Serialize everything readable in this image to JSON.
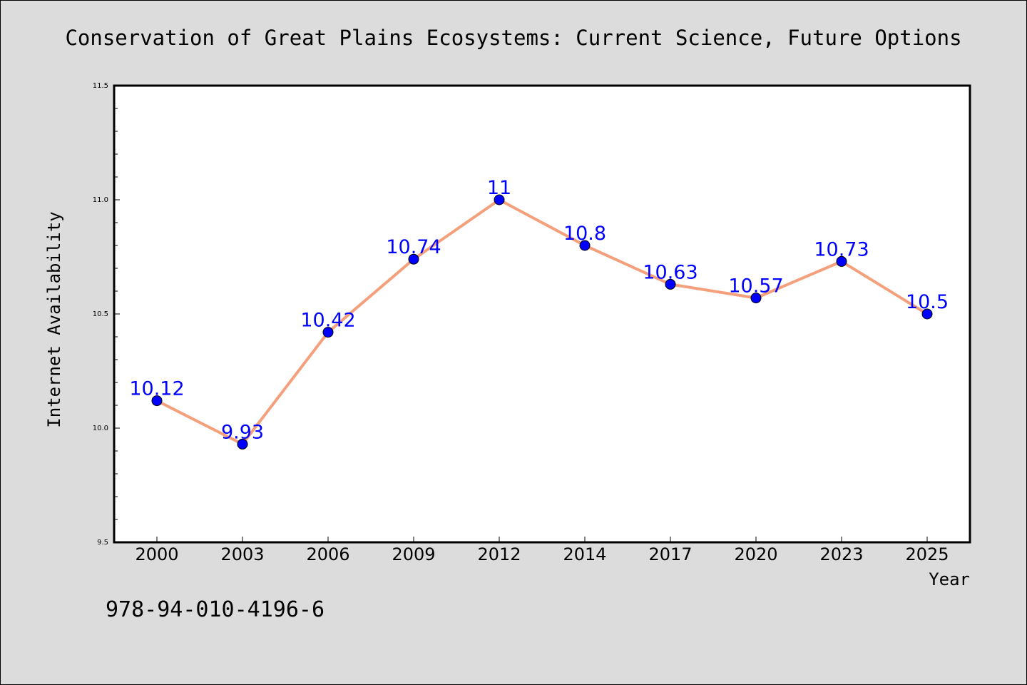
{
  "chart_data": {
    "type": "line",
    "title": "Conservation of Great Plains Ecosystems: Current Science, Future Options",
    "xlabel": "Year",
    "ylabel": "Internet Availability",
    "categories": [
      "2000",
      "2003",
      "2006",
      "2009",
      "2012",
      "2014",
      "2017",
      "2020",
      "2023",
      "2025"
    ],
    "series": [
      {
        "values": [
          10.12,
          9.93,
          10.42,
          10.74,
          11,
          10.8,
          10.63,
          10.57,
          10.73,
          10.5
        ]
      }
    ],
    "data_labels": [
      "10.12",
      "9.93",
      "10.42",
      "10.74",
      "11",
      "10.8",
      "10.63",
      "10.57",
      "10.73",
      "10.5"
    ],
    "ylim": [
      9.5,
      11.5
    ],
    "yticks": [
      9.5,
      10.0,
      10.5,
      11.0,
      11.5
    ],
    "ytick_labels": [
      "9.5",
      "10.0",
      "10.5",
      "11.0",
      "11.5"
    ],
    "grid": false,
    "colors": {
      "line": "#f4a07c",
      "marker": "#0000ff",
      "label": "#0000ff",
      "background": "#dcdcdc",
      "plot_bg": "#ffffff"
    },
    "annotation": "978-94-010-4196-6"
  }
}
